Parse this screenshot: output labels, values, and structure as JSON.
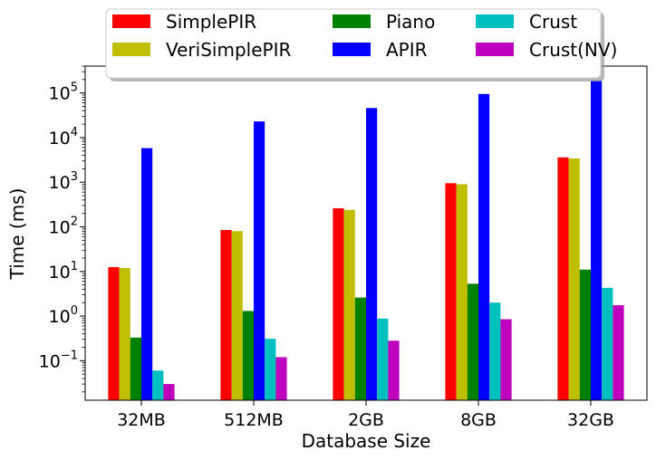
{
  "chart_data": {
    "type": "bar",
    "xlabel": "Database Size",
    "ylabel": "Time (ms)",
    "yscale": "log",
    "ylim": [
      0.013,
      400000
    ],
    "categories": [
      "32MB",
      "512MB",
      "2GB",
      "8GB",
      "32GB"
    ],
    "series": [
      {
        "name": "SimplePIR",
        "color": "#ff0000",
        "values": [
          12.5,
          85,
          260,
          950,
          3600
        ]
      },
      {
        "name": "VeriSimplePIR",
        "color": "#bfbf00",
        "values": [
          12,
          80,
          240,
          900,
          3400
        ]
      },
      {
        "name": "Piano",
        "color": "#008000",
        "values": [
          0.33,
          1.3,
          2.6,
          5.3,
          11
        ]
      },
      {
        "name": "APIR",
        "color": "#0000ff",
        "values": [
          5800,
          23000,
          46000,
          95000,
          190000
        ]
      },
      {
        "name": "Crust",
        "color": "#00bfbf",
        "values": [
          0.06,
          0.31,
          0.88,
          2.0,
          4.3
        ]
      },
      {
        "name": "Crust(NV)",
        "color": "#bf00bf",
        "values": [
          0.03,
          0.12,
          0.28,
          0.85,
          1.75
        ]
      }
    ],
    "yticks": [
      {
        "value": 0.1,
        "base": "10",
        "exp": "−1"
      },
      {
        "value": 1,
        "base": "10",
        "exp": "0"
      },
      {
        "value": 10,
        "base": "10",
        "exp": "1"
      },
      {
        "value": 100,
        "base": "10",
        "exp": "2"
      },
      {
        "value": 1000,
        "base": "10",
        "exp": "3"
      },
      {
        "value": 10000,
        "base": "10",
        "exp": "4"
      },
      {
        "value": 100000,
        "base": "10",
        "exp": "5"
      }
    ],
    "legend": {
      "placement": "top-center",
      "columns": 3,
      "shadow": true
    },
    "grid": false
  }
}
